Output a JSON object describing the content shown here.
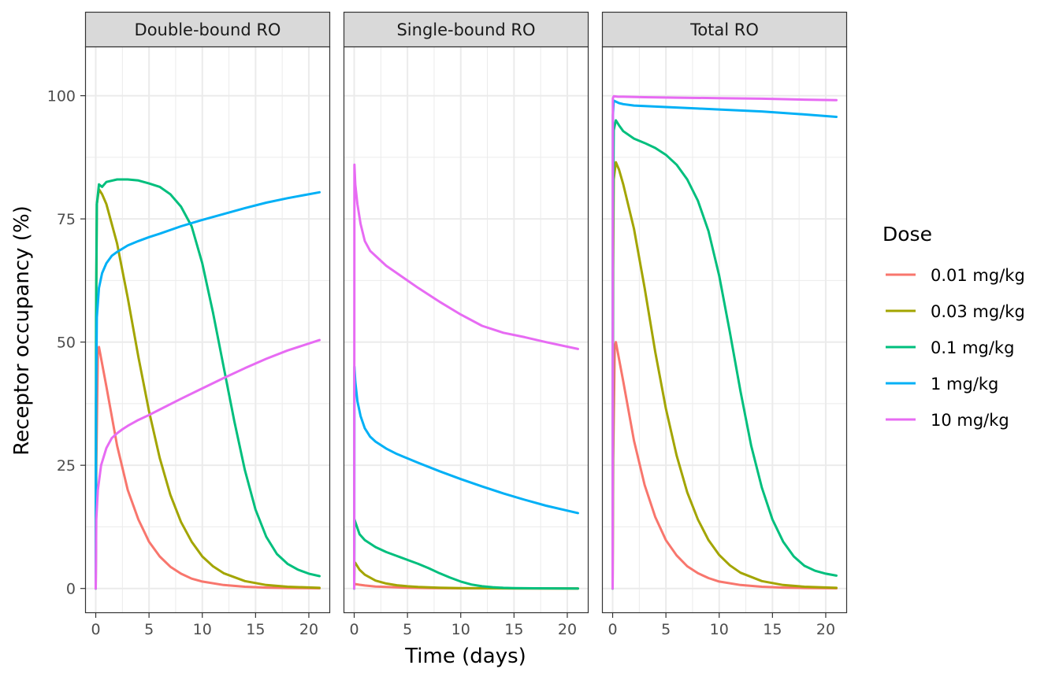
{
  "chart_data": {
    "type": "line",
    "xlabel": "Time (days)",
    "ylabel": "Receptor occupancy (%)",
    "xlim": [
      -1,
      22
    ],
    "ylim": [
      -5,
      110
    ],
    "x_ticks": [
      0,
      5,
      10,
      15,
      20
    ],
    "y_ticks": [
      0,
      25,
      50,
      75,
      100
    ],
    "grid": true,
    "legend": {
      "title": "Dose",
      "position": "right"
    },
    "series_meta": [
      {
        "name": "0.01 mg/kg",
        "color": "#F8766D"
      },
      {
        "name": "0.03 mg/kg",
        "color": "#A3A500"
      },
      {
        "name": "0.1 mg/kg",
        "color": "#00BF7D"
      },
      {
        "name": "1 mg/kg",
        "color": "#00B0F6"
      },
      {
        "name": "10 mg/kg",
        "color": "#E76BF3"
      }
    ],
    "panels": [
      {
        "title": "Double-bound RO",
        "series": [
          {
            "name": "0.01 mg/kg",
            "x": [
              0,
              0.05,
              0.2,
              0.3,
              1,
              2,
              3,
              4,
              5,
              6,
              7,
              8,
              9,
              10,
              12,
              14,
              16,
              18,
              21
            ],
            "y": [
              0,
              25,
              48,
              49,
              41,
              29,
              20,
              14,
              9.5,
              6.5,
              4.4,
              3.0,
              2.0,
              1.4,
              0.7,
              0.35,
              0.18,
              0.09,
              0.03
            ]
          },
          {
            "name": "0.03 mg/kg",
            "x": [
              0,
              0.05,
              0.1,
              0.3,
              0.6,
              1,
              2,
              3,
              4,
              5,
              6,
              7,
              8,
              9,
              10,
              11,
              12,
              14,
              16,
              18,
              21
            ],
            "y": [
              0,
              60,
              78,
              81,
              80,
              78,
              70,
              59,
              47,
              36,
              26.5,
              19,
              13.5,
              9.5,
              6.5,
              4.5,
              3.1,
              1.5,
              0.7,
              0.35,
              0.12
            ]
          },
          {
            "name": "0.1 mg/kg",
            "x": [
              0,
              0.03,
              0.1,
              0.3,
              0.6,
              1,
              2,
              3,
              4,
              5,
              6,
              7,
              8,
              9,
              10,
              11,
              12,
              13,
              14,
              15,
              16,
              17,
              18,
              19,
              20,
              21
            ],
            "y": [
              0,
              55,
              78,
              82,
              81.5,
              82.5,
              83,
              83,
              82.8,
              82.2,
              81.5,
              80,
              77.5,
              73.5,
              66,
              56,
              45,
              34,
              24,
              16,
              10.5,
              7,
              5,
              3.8,
              3.0,
              2.5
            ]
          },
          {
            "name": "1 mg/kg",
            "x": [
              0,
              0.03,
              0.1,
              0.3,
              0.6,
              1,
              1.5,
              2,
              3,
              4,
              5,
              6,
              8,
              10,
              12,
              14,
              16,
              18,
              21
            ],
            "y": [
              0,
              38,
              55,
              61,
              64,
              66,
              67.5,
              68.3,
              69.6,
              70.5,
              71.3,
              72,
              73.5,
              74.8,
              76,
              77.2,
              78.3,
              79.2,
              80.4
            ]
          },
          {
            "name": "10 mg/kg",
            "x": [
              0,
              0.05,
              0.2,
              0.5,
              1,
              1.5,
              2,
              2.5,
              3,
              4,
              5,
              6,
              8,
              10,
              12,
              14,
              16,
              18,
              21
            ],
            "y": [
              0,
              14,
              20,
              25,
              28.5,
              30.5,
              31.5,
              32.3,
              33,
              34.2,
              35.2,
              36.3,
              38.5,
              40.6,
              42.7,
              44.7,
              46.6,
              48.3,
              50.4
            ]
          }
        ]
      },
      {
        "title": "Single-bound RO",
        "series": [
          {
            "name": "0.01 mg/kg",
            "x": [
              0,
              0.02,
              0.1,
              0.5,
              1,
              2,
              3,
              5,
              7,
              10,
              15,
              21
            ],
            "y": [
              0,
              1.0,
              0.9,
              0.75,
              0.6,
              0.4,
              0.3,
              0.15,
              0.08,
              0.03,
              0.01,
              0.0
            ]
          },
          {
            "name": "0.03 mg/kg",
            "x": [
              0,
              0.02,
              0.1,
              0.5,
              1,
              2,
              3,
              4,
              5,
              6,
              8,
              10,
              15,
              21
            ],
            "y": [
              0,
              5.3,
              5.2,
              3.8,
              2.8,
              1.6,
              1.0,
              0.65,
              0.45,
              0.3,
              0.14,
              0.07,
              0.01,
              0.0
            ]
          },
          {
            "name": "0.1 mg/kg",
            "x": [
              0,
              0.02,
              0.1,
              0.5,
              1,
              2,
              3,
              4,
              5,
              6,
              7,
              8,
              9,
              10,
              11,
              12,
              13,
              14,
              15,
              17,
              19,
              21
            ],
            "y": [
              0,
              14,
              13.5,
              11,
              9.8,
              8.4,
              7.4,
              6.6,
              5.8,
              5.0,
              4.1,
              3.1,
              2.2,
              1.4,
              0.8,
              0.45,
              0.25,
              0.13,
              0.08,
              0.03,
              0.01,
              0.0
            ]
          },
          {
            "name": "1 mg/kg",
            "x": [
              0,
              0.02,
              0.1,
              0.3,
              0.6,
              1,
              1.5,
              2,
              3,
              4,
              5,
              6,
              8,
              10,
              12,
              14,
              16,
              18,
              21
            ],
            "y": [
              0,
              45,
              42,
              38,
              35,
              32.5,
              30.8,
              29.8,
              28.4,
              27.3,
              26.4,
              25.5,
              23.8,
              22.2,
              20.7,
              19.3,
              18.0,
              16.8,
              15.3
            ]
          },
          {
            "name": "10 mg/kg",
            "x": [
              0,
              0.02,
              0.1,
              0.3,
              0.6,
              1,
              1.5,
              2,
              3,
              4,
              5,
              6,
              8,
              10,
              12,
              14,
              16,
              18,
              21
            ],
            "y": [
              0,
              86,
              82,
              78,
              74,
              70.5,
              68.5,
              67.5,
              65.5,
              64,
              62.5,
              61,
              58.2,
              55.6,
              53.3,
              51.9,
              51.0,
              50,
              48.6
            ]
          }
        ]
      },
      {
        "title": "Total RO",
        "series": [
          {
            "name": "0.01 mg/kg",
            "x": [
              0,
              0.05,
              0.2,
              0.3,
              1,
              2,
              3,
              4,
              5,
              6,
              7,
              8,
              9,
              10,
              12,
              14,
              16,
              18,
              21
            ],
            "y": [
              0,
              26,
              49,
              50,
              42,
              30,
              21,
              14.5,
              9.8,
              6.7,
              4.5,
              3.1,
              2.1,
              1.4,
              0.7,
              0.35,
              0.18,
              0.09,
              0.03
            ]
          },
          {
            "name": "0.03 mg/kg",
            "x": [
              0,
              0.05,
              0.1,
              0.3,
              0.6,
              1,
              2,
              3,
              4,
              5,
              6,
              7,
              8,
              9,
              10,
              11,
              12,
              14,
              16,
              18,
              21
            ],
            "y": [
              0,
              65,
              83,
              86.5,
              85,
              82,
              73,
              61,
              48,
              36.5,
              27,
              19.5,
              14,
              9.8,
              6.8,
              4.7,
              3.2,
              1.5,
              0.7,
              0.35,
              0.12
            ]
          },
          {
            "name": "0.1 mg/kg",
            "x": [
              0,
              0.03,
              0.1,
              0.3,
              0.6,
              1,
              2,
              3,
              4,
              5,
              6,
              7,
              8,
              9,
              10,
              11,
              12,
              13,
              14,
              15,
              16,
              17,
              18,
              19,
              20,
              21
            ],
            "y": [
              0,
              70,
              93,
              95,
              94,
              92.8,
              91.3,
              90.4,
              89.4,
              88,
              86,
              83,
              78.7,
              72.5,
              63.5,
              52,
              40,
              29,
              20.5,
              14,
              9.5,
              6.5,
              4.6,
              3.6,
              3.0,
              2.6
            ]
          },
          {
            "name": "1 mg/kg",
            "x": [
              0,
              0.02,
              0.1,
              0.3,
              0.6,
              1,
              2,
              3,
              4,
              6,
              8,
              10,
              12,
              14,
              16,
              18,
              21
            ],
            "y": [
              0,
              96,
              99,
              98.8,
              98.5,
              98.3,
              98.0,
              97.9,
              97.8,
              97.6,
              97.4,
              97.2,
              97.0,
              96.8,
              96.5,
              96.2,
              95.7
            ]
          },
          {
            "name": "10 mg/kg",
            "x": [
              0,
              0.02,
              0.1,
              0.5,
              1,
              3,
              6,
              10,
              14,
              18,
              21
            ],
            "y": [
              0,
              99.5,
              99.9,
              99.8,
              99.8,
              99.7,
              99.6,
              99.5,
              99.4,
              99.2,
              99.1
            ]
          }
        ]
      }
    ]
  }
}
